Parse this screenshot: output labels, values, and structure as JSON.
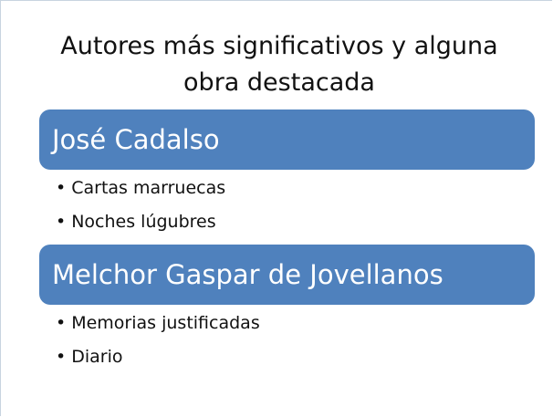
{
  "title": "Autores más significativos y alguna obra destacada",
  "sections": [
    {
      "heading": "José Cadalso",
      "items": [
        "Cartas marruecas",
        "Noches lúgubres"
      ]
    },
    {
      "heading": "Melchor Gaspar de Jovellanos",
      "items": [
        "Memorias justificadas",
        "Diario"
      ]
    }
  ]
}
